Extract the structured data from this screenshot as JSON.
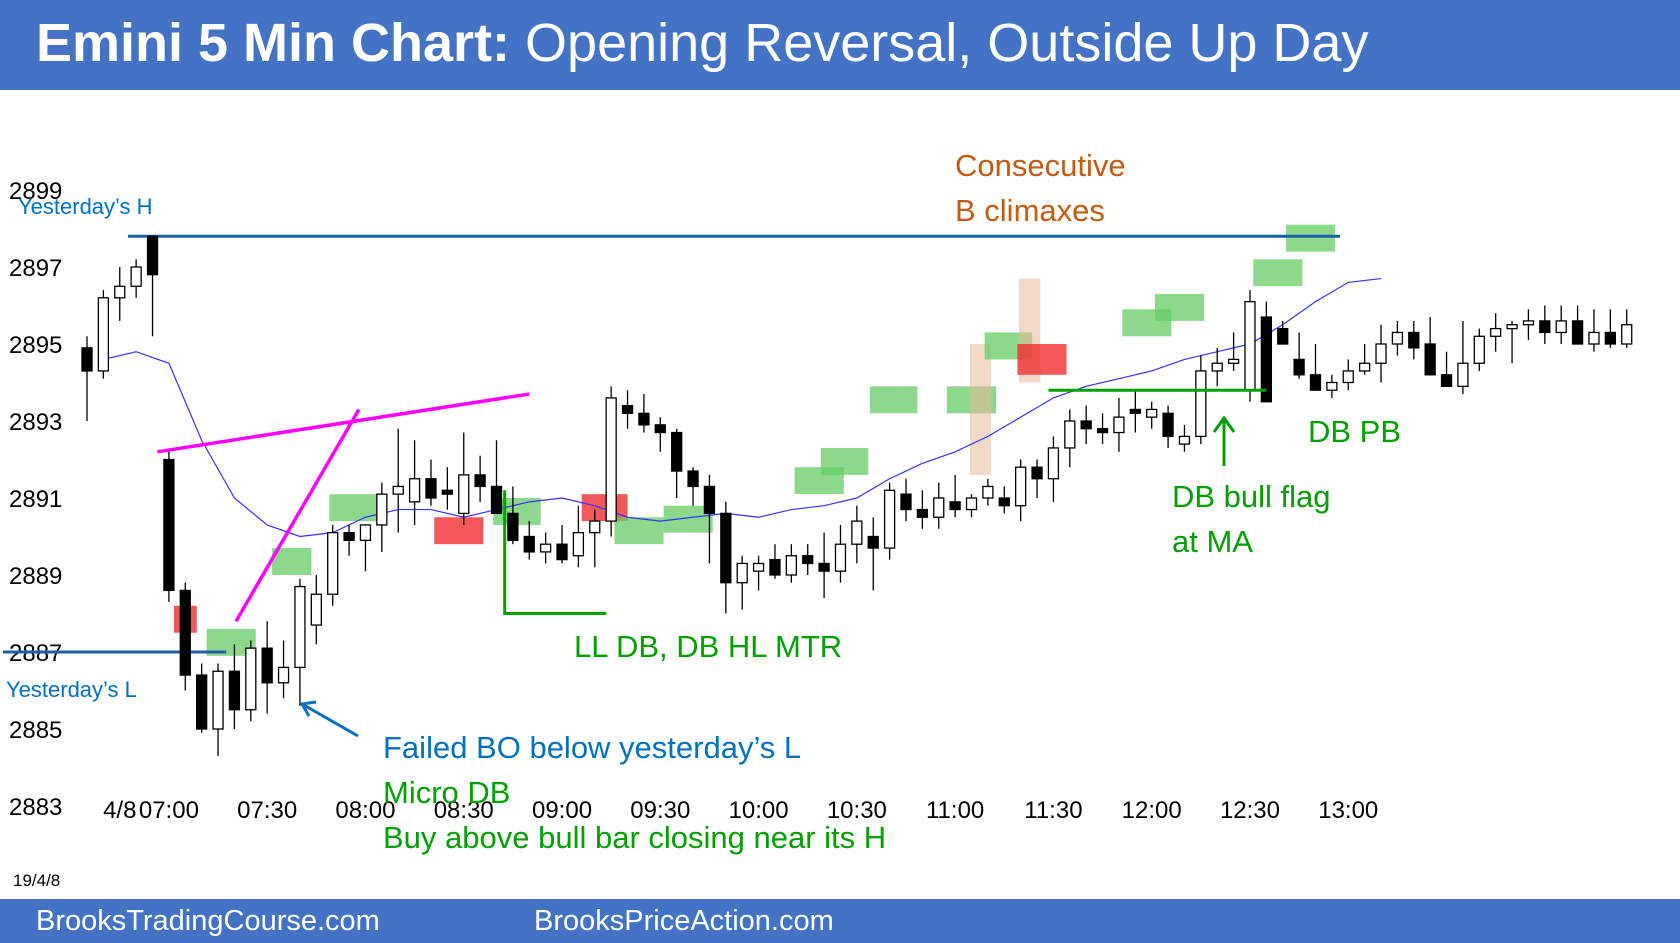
{
  "header": {
    "title_bold": "Emini 5 Min Chart:",
    "title_rest": " Opening Reversal, Outside Up Day"
  },
  "footer": {
    "left": "BrooksTradingCourse.com",
    "right": "BrooksPriceAction.com"
  },
  "colors": {
    "banner": "#4472c4",
    "blue_text": "#0070c0",
    "green_text": "#00a000",
    "orange_text": "#c55a11",
    "magenta": "#ff00ff",
    "ma_line": "#3333ff",
    "green_box": "#66cc66",
    "red_box": "#ee3333",
    "tan_box": "#e8b898"
  },
  "chart_data": {
    "type": "candlestick",
    "date_label": "19/4/8",
    "y_ticks": [
      2899,
      2897,
      2895,
      2893,
      2891,
      2889,
      2887,
      2885,
      2883
    ],
    "ylim": [
      2882.5,
      2900.5
    ],
    "x_ticks": [
      {
        "bar": 2,
        "label": "4/8"
      },
      {
        "bar": 5,
        "label": "07:00"
      },
      {
        "bar": 11,
        "label": "07:30"
      },
      {
        "bar": 17,
        "label": "08:00"
      },
      {
        "bar": 23,
        "label": "08:30"
      },
      {
        "bar": 29,
        "label": "09:00"
      },
      {
        "bar": 35,
        "label": "09:30"
      },
      {
        "bar": 41,
        "label": "10:00"
      },
      {
        "bar": 47,
        "label": "10:30"
      },
      {
        "bar": 53,
        "label": "11:00"
      },
      {
        "bar": 59,
        "label": "11:30"
      },
      {
        "bar": 65,
        "label": "12:00"
      },
      {
        "bar": 71,
        "label": "12:30"
      },
      {
        "bar": 77,
        "label": "13:00"
      }
    ],
    "bars": [
      [
        2894.9,
        2895.2,
        2893.0,
        2894.3
      ],
      [
        2894.3,
        2896.4,
        2894.1,
        2896.2
      ],
      [
        2896.2,
        2897.0,
        2895.6,
        2896.5
      ],
      [
        2896.5,
        2897.2,
        2896.2,
        2897.0
      ],
      [
        2897.8,
        2897.8,
        2895.2,
        2896.8
      ],
      [
        2892.0,
        2892.2,
        2888.3,
        2888.6
      ],
      [
        2888.6,
        2888.8,
        2886.0,
        2886.4
      ],
      [
        2886.4,
        2886.7,
        2884.9,
        2885.0
      ],
      [
        2885.0,
        2886.7,
        2884.3,
        2886.5
      ],
      [
        2886.5,
        2887.2,
        2885.0,
        2885.5
      ],
      [
        2885.5,
        2887.3,
        2885.2,
        2887.1
      ],
      [
        2887.1,
        2887.8,
        2885.4,
        2886.2
      ],
      [
        2886.2,
        2887.3,
        2885.8,
        2886.6
      ],
      [
        2886.6,
        2888.9,
        2885.6,
        2888.7
      ],
      [
        2887.7,
        2889.0,
        2887.2,
        2888.5
      ],
      [
        2888.5,
        2890.3,
        2888.2,
        2890.1
      ],
      [
        2890.1,
        2890.3,
        2889.5,
        2889.9
      ],
      [
        2889.9,
        2890.3,
        2889.1,
        2890.3
      ],
      [
        2890.3,
        2891.4,
        2889.6,
        2891.1
      ],
      [
        2891.1,
        2892.8,
        2890.1,
        2891.3
      ],
      [
        2890.9,
        2892.5,
        2890.3,
        2891.5
      ],
      [
        2891.5,
        2892.0,
        2890.8,
        2891.0
      ],
      [
        2891.2,
        2891.8,
        2890.7,
        2891.1
      ],
      [
        2890.6,
        2892.7,
        2890.3,
        2891.6
      ],
      [
        2891.6,
        2892.1,
        2890.9,
        2891.3
      ],
      [
        2891.3,
        2892.5,
        2890.7,
        2890.6
      ],
      [
        2890.6,
        2891.3,
        2889.8,
        2889.9
      ],
      [
        2890.0,
        2890.4,
        2889.4,
        2889.6
      ],
      [
        2889.6,
        2890.1,
        2889.3,
        2889.8
      ],
      [
        2889.8,
        2890.3,
        2889.3,
        2889.4
      ],
      [
        2889.5,
        2890.8,
        2889.2,
        2890.1
      ],
      [
        2890.1,
        2890.7,
        2889.2,
        2890.4
      ],
      [
        2890.4,
        2893.9,
        2890.0,
        2893.6
      ],
      [
        2893.4,
        2893.8,
        2892.8,
        2893.2
      ],
      [
        2893.2,
        2893.7,
        2892.7,
        2892.9
      ],
      [
        2892.9,
        2893.1,
        2892.2,
        2892.7
      ],
      [
        2892.7,
        2892.8,
        2891.0,
        2891.7
      ],
      [
        2891.7,
        2891.8,
        2890.8,
        2891.3
      ],
      [
        2891.3,
        2891.6,
        2889.3,
        2890.6
      ],
      [
        2890.6,
        2890.9,
        2888.0,
        2888.8
      ],
      [
        2888.8,
        2889.5,
        2888.1,
        2889.3
      ],
      [
        2889.1,
        2889.5,
        2888.6,
        2889.3
      ],
      [
        2889.4,
        2889.8,
        2888.9,
        2889.0
      ],
      [
        2889.0,
        2889.8,
        2888.8,
        2889.5
      ],
      [
        2889.5,
        2889.8,
        2889.0,
        2889.3
      ],
      [
        2889.3,
        2890.1,
        2888.4,
        2889.1
      ],
      [
        2889.1,
        2890.3,
        2888.8,
        2889.8
      ],
      [
        2889.8,
        2890.8,
        2889.3,
        2890.4
      ],
      [
        2890.0,
        2890.5,
        2888.6,
        2889.7
      ],
      [
        2889.7,
        2891.4,
        2889.4,
        2891.2
      ],
      [
        2891.1,
        2891.5,
        2890.4,
        2890.7
      ],
      [
        2890.7,
        2891.2,
        2890.2,
        2890.5
      ],
      [
        2890.5,
        2891.4,
        2890.2,
        2891.0
      ],
      [
        2890.9,
        2891.6,
        2890.5,
        2890.7
      ],
      [
        2890.7,
        2891.1,
        2890.5,
        2891.0
      ],
      [
        2891.0,
        2891.5,
        2890.8,
        2891.3
      ],
      [
        2891.0,
        2891.3,
        2890.6,
        2890.8
      ],
      [
        2890.8,
        2892.0,
        2890.4,
        2891.8
      ],
      [
        2891.8,
        2892.0,
        2891.0,
        2891.5
      ],
      [
        2891.5,
        2892.6,
        2890.9,
        2892.3
      ],
      [
        2892.3,
        2893.3,
        2891.8,
        2893.0
      ],
      [
        2893.0,
        2893.4,
        2892.4,
        2892.8
      ],
      [
        2892.8,
        2893.2,
        2892.4,
        2892.7
      ],
      [
        2892.7,
        2893.6,
        2892.2,
        2893.1
      ],
      [
        2893.3,
        2893.8,
        2892.7,
        2893.2
      ],
      [
        2893.1,
        2893.5,
        2892.8,
        2893.3
      ],
      [
        2893.2,
        2893.4,
        2892.3,
        2892.6
      ],
      [
        2892.4,
        2892.9,
        2892.2,
        2892.6
      ],
      [
        2892.6,
        2894.7,
        2892.4,
        2894.3
      ],
      [
        2894.3,
        2894.9,
        2893.9,
        2894.5
      ],
      [
        2894.5,
        2895.3,
        2894.3,
        2894.6
      ],
      [
        2893.8,
        2896.4,
        2893.5,
        2896.1
      ],
      [
        2895.7,
        2896.1,
        2893.8,
        2893.5
      ],
      [
        2895.4,
        2895.6,
        2895.2,
        2895.0
      ],
      [
        2894.6,
        2895.3,
        2894.1,
        2894.2
      ],
      [
        2894.2,
        2895.0,
        2893.8,
        2893.8
      ],
      [
        2893.8,
        2894.2,
        2893.6,
        2894.0
      ],
      [
        2894.0,
        2894.6,
        2893.8,
        2894.3
      ],
      [
        2894.3,
        2895.0,
        2894.2,
        2894.5
      ],
      [
        2894.5,
        2895.5,
        2894.0,
        2895.0
      ],
      [
        2895.0,
        2895.6,
        2894.7,
        2895.3
      ],
      [
        2895.3,
        2895.6,
        2894.6,
        2894.9
      ],
      [
        2895.0,
        2895.7,
        2894.7,
        2894.2
      ],
      [
        2894.2,
        2894.8,
        2893.9,
        2893.9
      ],
      [
        2893.9,
        2895.6,
        2893.7,
        2894.5
      ],
      [
        2894.5,
        2895.4,
        2894.3,
        2895.2
      ],
      [
        2895.2,
        2895.8,
        2894.8,
        2895.4
      ],
      [
        2895.4,
        2895.6,
        2894.5,
        2895.5
      ],
      [
        2895.5,
        2895.9,
        2895.1,
        2895.6
      ],
      [
        2895.6,
        2896.0,
        2895.0,
        2895.3
      ],
      [
        2895.3,
        2896.0,
        2895.0,
        2895.6
      ],
      [
        2895.6,
        2896.0,
        2895.2,
        2895.0
      ],
      [
        2895.0,
        2895.9,
        2894.8,
        2895.3
      ],
      [
        2895.3,
        2895.9,
        2894.9,
        2895.0
      ],
      [
        2895.0,
        2895.9,
        2894.9,
        2895.5
      ]
    ],
    "moving_average": [
      [
        1,
        2894.6
      ],
      [
        3,
        2894.8
      ],
      [
        5,
        2894.5
      ],
      [
        7,
        2892.5
      ],
      [
        9,
        2891.0
      ],
      [
        11,
        2890.3
      ],
      [
        13,
        2890.0
      ],
      [
        15,
        2890.1
      ],
      [
        17,
        2890.5
      ],
      [
        19,
        2890.7
      ],
      [
        21,
        2890.7
      ],
      [
        23,
        2890.5
      ],
      [
        25,
        2890.7
      ],
      [
        27,
        2890.9
      ],
      [
        29,
        2891.0
      ],
      [
        31,
        2890.8
      ],
      [
        33,
        2890.5
      ],
      [
        35,
        2890.4
      ],
      [
        37,
        2890.5
      ],
      [
        39,
        2890.6
      ],
      [
        41,
        2890.5
      ],
      [
        43,
        2890.7
      ],
      [
        45,
        2890.8
      ],
      [
        47,
        2891.0
      ],
      [
        49,
        2891.5
      ],
      [
        51,
        2891.9
      ],
      [
        53,
        2892.2
      ],
      [
        55,
        2892.6
      ],
      [
        57,
        2893.1
      ],
      [
        59,
        2893.6
      ],
      [
        61,
        2893.9
      ],
      [
        63,
        2894.1
      ],
      [
        65,
        2894.3
      ],
      [
        67,
        2894.6
      ],
      [
        69,
        2894.8
      ],
      [
        71,
        2895.0
      ],
      [
        73,
        2895.5
      ],
      [
        75,
        2896.1
      ],
      [
        77,
        2896.6
      ],
      [
        79,
        2896.7
      ]
    ],
    "hlines": [
      {
        "label": "Yesterday’s H",
        "value": 2897.8
      },
      {
        "label": "Yesterday’s L",
        "value": 2887.0
      }
    ],
    "annotations": {
      "failed_bo": [
        "Failed BO below yesterday’s L"
      ],
      "green_block": [
        "Micro DB",
        "Buy above bull bar closing near its H"
      ],
      "ll_db": [
        "LL DB, DB HL MTR"
      ],
      "climax": [
        "Consecutive",
        "B climaxes"
      ],
      "db_flag": [
        "DB bull flag",
        "at MA"
      ],
      "db_pb": [
        "DB PB"
      ]
    }
  }
}
